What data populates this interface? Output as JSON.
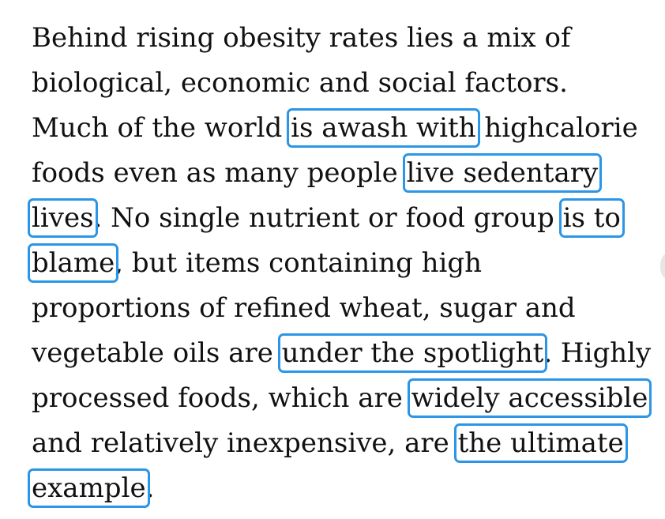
{
  "paragraph": {
    "lines": [
      {
        "a": "Behind rising obesity rates lies a mix of"
      },
      {
        "a": "biological, economic and social factors."
      },
      {
        "a": "Much of the world ",
        "h": "is awash with",
        "b": " highcalorie"
      },
      {
        "a": "foods even as many people ",
        "h": "live sedentary"
      },
      {
        "h": "lives",
        "a": ". No single nutrient or food group ",
        "h2": "is to"
      },
      {
        "h": "blame",
        "a": ", but items containing high"
      },
      {
        "a": "proportions of refined wheat, sugar and"
      },
      {
        "a": "vegetable oils are ",
        "h": "under the spotlight",
        "b": ". Highly"
      },
      {
        "a": "processed foods, which are ",
        "h": "widely accessible"
      },
      {
        "a": "and relatively inexpensive, are ",
        "h": "the ultimate"
      },
      {
        "h": "example",
        "a": "."
      }
    ]
  },
  "highlight_color": "#2b95e6"
}
